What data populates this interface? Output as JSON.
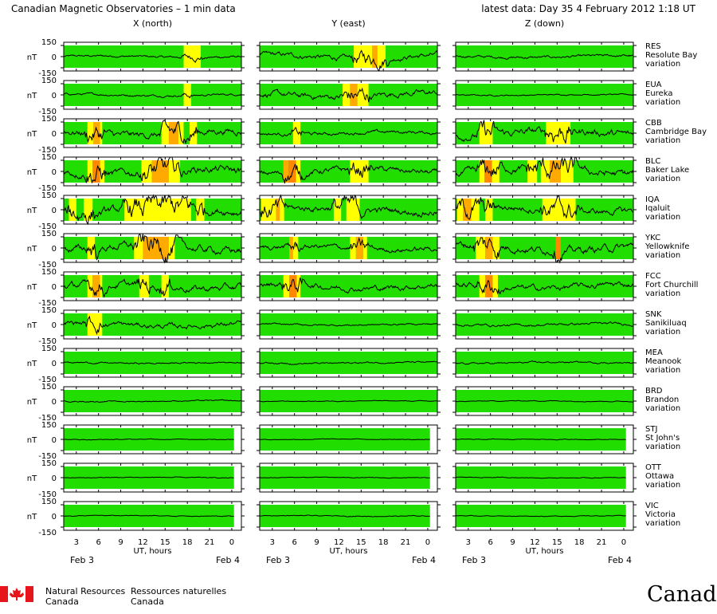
{
  "header": {
    "title": "Canadian Magnetic Observatories – 1 min data",
    "latest": "latest data: Day  35    4 February 2012  1:18 UT"
  },
  "chart_data": {
    "type": "line",
    "columns": [
      "X (north)",
      "Y (east)",
      "Z (down)"
    ],
    "ylabel": "nT",
    "yticks": [
      150,
      0,
      -150
    ],
    "xlabel": "UT, hours",
    "xticks": [
      "3",
      "6",
      "9",
      "12",
      "15",
      "18",
      "21",
      "0"
    ],
    "xrange_hours": [
      1.3,
      25.3
    ],
    "date_left": "Feb  3",
    "date_right": "Feb  4",
    "colors": {
      "quiet": "#22dd00",
      "moderate": "#ffff00",
      "active": "#ffaa00",
      "storm": "#ff8800",
      "trace": "#000000"
    },
    "stations": [
      {
        "code": "RES",
        "name": "Resolute Bay",
        "suffix": "variation",
        "amp": [
          25,
          60,
          30
        ],
        "activity": [
          [
            [
              "moderate",
              17.5,
              19.8
            ]
          ],
          [
            [
              "moderate",
              14,
              16.5
            ],
            [
              "active",
              16.5,
              17.2
            ],
            [
              "moderate",
              17.2,
              18.3
            ]
          ],
          []
        ]
      },
      {
        "code": "EUA",
        "name": "Eureka",
        "suffix": "variation",
        "amp": [
          25,
          70,
          15
        ],
        "activity": [
          [
            [
              "moderate",
              17.5,
              18.5
            ]
          ],
          [
            [
              "moderate",
              12.5,
              13.5
            ],
            [
              "active",
              13.5,
              14.5
            ],
            [
              "moderate",
              14.5,
              16
            ]
          ],
          []
        ]
      },
      {
        "code": "CBB",
        "name": "Cambridge Bay",
        "suffix": "variation",
        "amp": [
          80,
          40,
          90
        ],
        "activity": [
          [
            [
              "moderate",
              4.5,
              5.3
            ],
            [
              "active",
              5.3,
              6.2
            ],
            [
              "moderate",
              6.2,
              6.5
            ],
            [
              "moderate",
              14.5,
              15.5
            ],
            [
              "active",
              15.5,
              16.8
            ],
            [
              "moderate",
              16.8,
              17.5
            ],
            [
              "moderate",
              18.3,
              19.3
            ]
          ],
          [
            [
              "moderate",
              5.8,
              6.8
            ]
          ],
          [
            [
              "moderate",
              4.5,
              6.3
            ],
            [
              "moderate",
              13.5,
              16.8
            ]
          ]
        ]
      },
      {
        "code": "BLC",
        "name": "Baker Lake",
        "suffix": "variation",
        "amp": [
          90,
          70,
          90
        ],
        "activity": [
          [
            [
              "moderate",
              4.5,
              5.2
            ],
            [
              "storm",
              5.2,
              6.2
            ],
            [
              "moderate",
              6.2,
              6.8
            ],
            [
              "moderate",
              11.8,
              13.2
            ],
            [
              "active",
              13.2,
              15.5
            ],
            [
              "moderate",
              15.5,
              17
            ]
          ],
          [
            [
              "active",
              4.5,
              5.2
            ],
            [
              "storm",
              5.2,
              6.2
            ],
            [
              "moderate",
              6.2,
              6.8
            ],
            [
              "moderate",
              13.5,
              16
            ]
          ],
          [
            [
              "moderate",
              4.5,
              5.2
            ],
            [
              "storm",
              5.2,
              6.2
            ],
            [
              "moderate",
              6.2,
              7.2
            ],
            [
              "moderate",
              11,
              12.3
            ],
            [
              "moderate",
              12.8,
              14
            ],
            [
              "active",
              14,
              15.5
            ],
            [
              "moderate",
              15.5,
              17.2
            ]
          ]
        ]
      },
      {
        "code": "IQA",
        "name": "Iqaluit",
        "suffix": "variation",
        "amp": [
          90,
          80,
          80
        ],
        "activity": [
          [
            [
              "moderate",
              2,
              3
            ],
            [
              "moderate",
              4,
              5.2
            ],
            [
              "moderate",
              9.5,
              18.5
            ],
            [
              "moderate",
              19.2,
              20.3
            ]
          ],
          [
            [
              "moderate",
              1.5,
              3.5
            ],
            [
              "active",
              3.5,
              4
            ],
            [
              "moderate",
              4,
              4.6
            ],
            [
              "moderate",
              11.3,
              12.3
            ],
            [
              "moderate",
              13,
              14.8
            ]
          ],
          [
            [
              "moderate",
              1.5,
              2.3
            ],
            [
              "active",
              2.3,
              3.4
            ],
            [
              "moderate",
              3.4,
              4.5
            ],
            [
              "moderate",
              5.3,
              6.3
            ],
            [
              "moderate",
              13,
              17.5
            ]
          ]
        ]
      },
      {
        "code": "YKC",
        "name": "Yellowknife",
        "suffix": "variation",
        "amp": [
          90,
          60,
          90
        ],
        "activity": [
          [
            [
              "moderate",
              4.5,
              5.5
            ],
            [
              "moderate",
              10.8,
              12
            ],
            [
              "active",
              12,
              15.5
            ],
            [
              "moderate",
              15.5,
              16.3
            ]
          ],
          [
            [
              "active",
              5.3,
              5.8
            ],
            [
              "moderate",
              5.8,
              6.5
            ],
            [
              "moderate",
              13.5,
              14.3
            ],
            [
              "active",
              14.3,
              15.3
            ],
            [
              "moderate",
              15.3,
              15.8
            ]
          ],
          [
            [
              "moderate",
              4,
              5.3
            ],
            [
              "active",
              5.3,
              6.3
            ],
            [
              "moderate",
              6.3,
              7.2
            ],
            [
              "storm",
              14.8,
              15.5
            ]
          ]
        ]
      },
      {
        "code": "FCC",
        "name": "Fort Churchill",
        "suffix": "variation",
        "amp": [
          80,
          70,
          70
        ],
        "activity": [
          [
            [
              "moderate",
              4.5,
              5.2
            ],
            [
              "active",
              5.2,
              6.2
            ],
            [
              "moderate",
              6.2,
              6.5
            ],
            [
              "moderate",
              11.5,
              12.8
            ],
            [
              "moderate",
              14.5,
              15.5
            ]
          ],
          [
            [
              "moderate",
              4.5,
              5.3
            ],
            [
              "storm",
              5.3,
              6.3
            ],
            [
              "moderate",
              6.3,
              6.8
            ]
          ],
          [
            [
              "moderate",
              4.5,
              5.3
            ],
            [
              "storm",
              5.3,
              6.3
            ],
            [
              "moderate",
              6.3,
              7
            ]
          ]
        ]
      },
      {
        "code": "SNK",
        "name": "Sanikiluaq",
        "suffix": "variation",
        "amp": [
          60,
          20,
          30
        ],
        "activity": [
          [
            [
              "moderate",
              4.5,
              6.5
            ]
          ],
          [],
          []
        ]
      },
      {
        "code": "MEA",
        "name": "Meanook",
        "suffix": "variation",
        "amp": [
          20,
          20,
          20
        ],
        "activity": [
          [],
          [],
          []
        ]
      },
      {
        "code": "BRD",
        "name": "Brandon",
        "suffix": "variation",
        "amp": [
          15,
          10,
          10
        ],
        "activity": [
          [],
          [],
          []
        ]
      },
      {
        "code": "STJ",
        "name": "St John's",
        "suffix": "variation",
        "amp": [
          8,
          8,
          8
        ],
        "activity": [
          [],
          [],
          []
        ]
      },
      {
        "code": "OTT",
        "name": "Ottawa",
        "suffix": "variation",
        "amp": [
          10,
          8,
          8
        ],
        "activity": [
          [],
          [],
          []
        ]
      },
      {
        "code": "VIC",
        "name": "Victoria",
        "suffix": "variation",
        "amp": [
          10,
          10,
          8
        ],
        "activity": [
          [],
          [],
          []
        ]
      }
    ]
  },
  "footer": {
    "nrc_en_1": "Natural Resources",
    "nrc_en_2": "Canada",
    "nrc_fr_1": "Ressources naturelles",
    "nrc_fr_2": "Canada",
    "wordmark": "Canada"
  }
}
